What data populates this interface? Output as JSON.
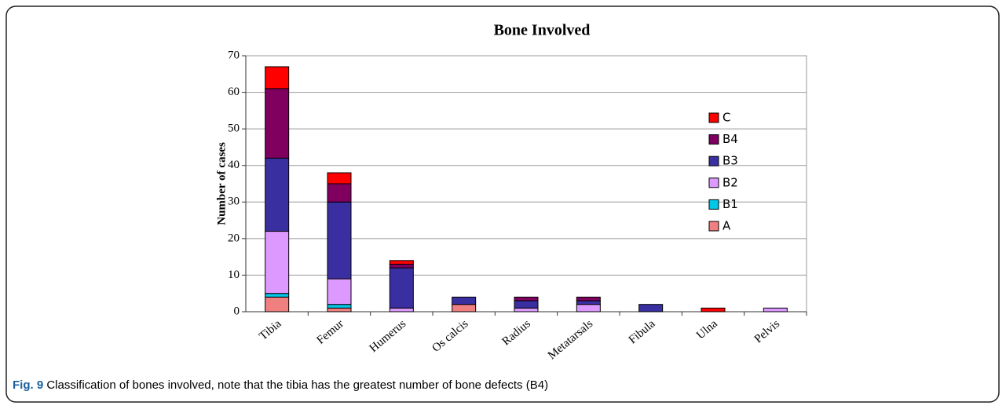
{
  "chart_data": {
    "type": "stacked_bar",
    "title": "Bone Involved",
    "y_label": "Number of cases",
    "categories": [
      "Tibia",
      "Femur",
      "Humerus",
      "Os calcis",
      "Radius",
      "Metatarsals",
      "Fibula",
      "Ulna",
      "Pelvis"
    ],
    "series": [
      {
        "name": "A",
        "color": "#f08080",
        "values": [
          4,
          1,
          0,
          2,
          0,
          0,
          0,
          0,
          0
        ]
      },
      {
        "name": "B1",
        "color": "#00c8e8",
        "values": [
          1,
          1,
          0,
          0,
          0,
          0,
          0,
          0,
          0
        ]
      },
      {
        "name": "B2",
        "color": "#dd99ff",
        "values": [
          17,
          7,
          1,
          0,
          1,
          2,
          0,
          0,
          1
        ]
      },
      {
        "name": "B3",
        "color": "#3a2fa0",
        "values": [
          20,
          21,
          11,
          2,
          2,
          1,
          2,
          0,
          0
        ]
      },
      {
        "name": "B4",
        "color": "#800060",
        "values": [
          19,
          5,
          1,
          0,
          1,
          1,
          0,
          0,
          0
        ]
      },
      {
        "name": "C",
        "color": "#ff0000",
        "values": [
          6,
          3,
          1,
          0,
          0,
          0,
          0,
          1,
          0
        ]
      }
    ],
    "ylim": [
      0,
      70
    ],
    "yticks": [
      0,
      10,
      20,
      30,
      40,
      50,
      60,
      70
    ],
    "grid": true,
    "legend": "right"
  },
  "caption": {
    "label": "Fig. 9",
    "text": "Classification of bones involved, note that the tibia has the greatest number of bone defects (B4)"
  }
}
